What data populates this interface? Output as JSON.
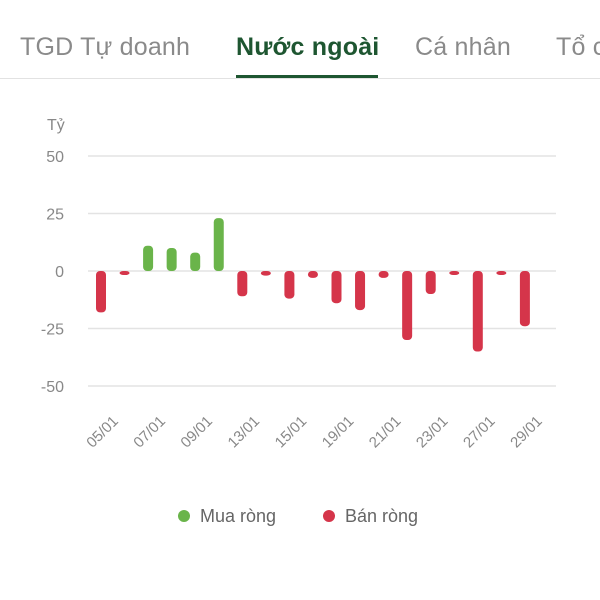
{
  "tabs": [
    {
      "label": "TGD Tự doanh",
      "active": false
    },
    {
      "label": "Nước ngoài",
      "active": true
    },
    {
      "label": "Cá nhân",
      "active": false
    },
    {
      "label": "Tổ c",
      "active": false
    }
  ],
  "colors": {
    "buy": "#6ab44a",
    "sell": "#d5354a",
    "grid": "#e3e3e3",
    "tick": "#888888",
    "active_tab": "#1e5631"
  },
  "chart_data": {
    "type": "bar",
    "y_unit": "Tỷ",
    "ylim": [
      -50,
      50
    ],
    "y_ticks": [
      50,
      25,
      0,
      -25,
      -50
    ],
    "x_tick_labels": [
      "05/01",
      "07/01",
      "09/01",
      "13/01",
      "15/01",
      "19/01",
      "21/01",
      "23/01",
      "27/01",
      "29/01"
    ],
    "values": [
      -18,
      -1.5,
      11,
      10,
      8,
      23,
      -11,
      -2,
      -12,
      -3,
      -14,
      -17,
      -3,
      -30,
      -10,
      -1,
      -35,
      -1,
      -24
    ],
    "grid": true,
    "legend_position": "bottom-center",
    "series": [
      {
        "name": "Mua ròng",
        "sign": "positive",
        "color": "#6ab44a"
      },
      {
        "name": "Bán ròng",
        "sign": "negative",
        "color": "#d5354a"
      }
    ]
  }
}
